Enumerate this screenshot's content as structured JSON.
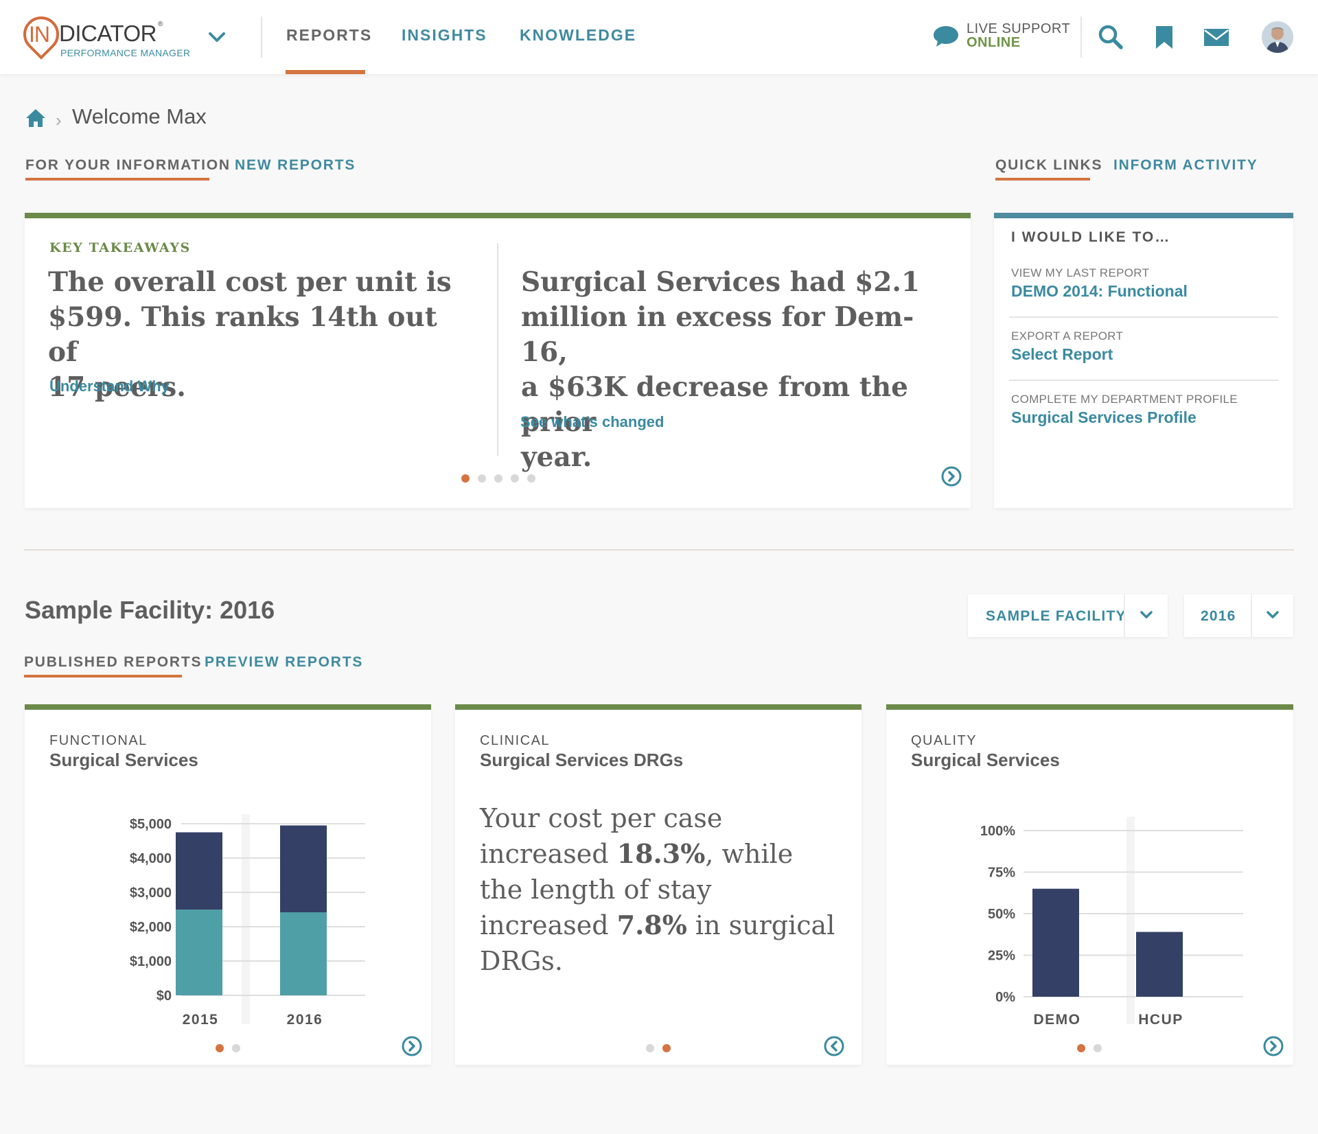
{
  "header": {
    "logo": {
      "mark": "IN",
      "name": "DICATOR",
      "reg": "®",
      "sub": "PERFORMANCE MANAGER"
    },
    "nav": [
      "REPORTS",
      "INSIGHTS",
      "KNOWLEDGE"
    ],
    "support": {
      "line1": "LIVE SUPPORT",
      "line2": "ONLINE"
    },
    "icons": [
      "chat-icon",
      "search-icon",
      "bookmark-icon",
      "mail-icon",
      "avatar"
    ]
  },
  "breadcrumb": {
    "title": "Welcome Max"
  },
  "info_tabs": [
    "FOR YOUR INFORMATION",
    "NEW REPORTS"
  ],
  "side_tabs": [
    "QUICK LINKS",
    "INFORM ACTIVITY"
  ],
  "takeaways": {
    "label": "KEY TAKEAWAYS",
    "left": {
      "lines": [
        "The overall cost per unit is",
        "$599. This ranks 14th out of",
        "17 peers."
      ],
      "link": "Understand Why"
    },
    "right": {
      "lines": [
        "Surgical Services had $2.1",
        "million in excess for Dem-16,",
        "a $63K decrease from the prior",
        "year."
      ],
      "link": "See what’s changed"
    },
    "dots_total": 5,
    "dot_active": 0
  },
  "quick_links": {
    "heading": "I WOULD LIKE TO…",
    "items": [
      {
        "label": "VIEW MY LAST REPORT",
        "link": "DEMO 2014: Functional"
      },
      {
        "label": "EXPORT A REPORT",
        "link": "Select Report"
      },
      {
        "label": "COMPLETE MY DEPARTMENT PROFILE",
        "link": "Surgical Services Profile"
      }
    ]
  },
  "facility": {
    "title": "Sample Facility: 2016",
    "facility_select": "SAMPLE FACILITY",
    "year_select": "2016",
    "tabs": [
      "PUBLISHED REPORTS",
      "PREVIEW REPORTS"
    ]
  },
  "reports": [
    {
      "category": "FUNCTIONAL",
      "title": "Surgical Services",
      "dots_total": 2,
      "dot_active": 0
    },
    {
      "category": "CLINICAL",
      "title": "Surgical Services DRGs",
      "dots_total": 2,
      "dot_active": 1,
      "text_html": [
        "Your cost per case increased",
        "18.3%",
        ", while the length of",
        "stay increased ",
        "7.8%",
        " in",
        "surgical DRGs."
      ]
    },
    {
      "category": "QUALITY",
      "title": "Surgical Services",
      "dots_total": 2,
      "dot_active": 0
    }
  ],
  "colors": {
    "orange": "#d47440",
    "teal": "#3a8aa0",
    "green": "#6b8a49",
    "navy": "#344066",
    "bar_teal": "#4f9fa7",
    "support_green": "#6f9447"
  },
  "chart_data": [
    {
      "type": "bar",
      "stacked": true,
      "categories": [
        "2015",
        "2016"
      ],
      "series": [
        {
          "values": [
            2500,
            2420
          ]
        },
        {
          "values": [
            2250,
            2530
          ]
        }
      ],
      "yticks": [
        "$5,000",
        "$4,000",
        "$3,000",
        "$2,000",
        "$1,000",
        "$0"
      ],
      "ylim": [
        0,
        5000
      ],
      "grid": true
    },
    {
      "type": "bar",
      "categories": [
        "DEMO",
        "HCUP"
      ],
      "values": [
        65,
        39
      ],
      "yticks": [
        "100%",
        "75%",
        "50%",
        "25%",
        "0%"
      ],
      "ylim": [
        0,
        100
      ],
      "grid": true
    }
  ]
}
